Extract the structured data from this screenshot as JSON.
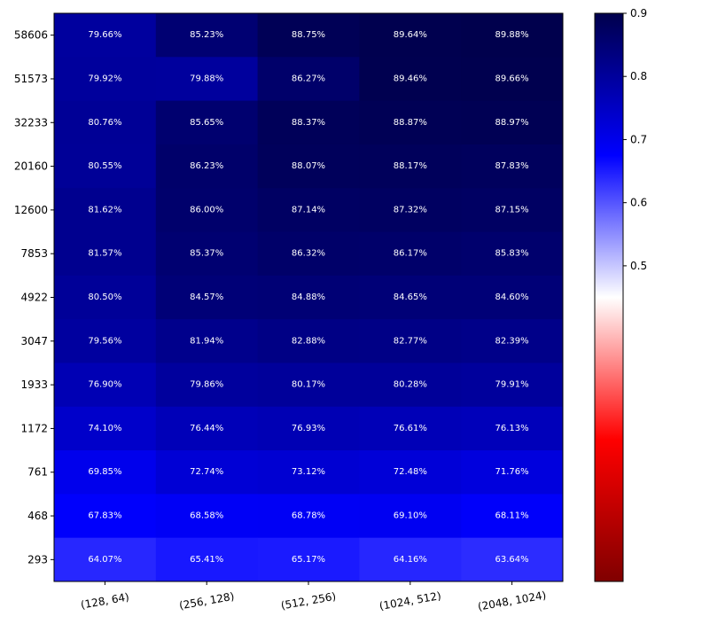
{
  "chart_data": {
    "type": "heatmap",
    "title": "",
    "xlabel": "",
    "ylabel": "",
    "x_categories": [
      "(128, 64)",
      "(256, 128)",
      "(512, 256)",
      "(1024, 512)",
      "(2048, 1024)"
    ],
    "y_categories": [
      "58606",
      "51573",
      "32233",
      "20160",
      "12600",
      "7853",
      "4922",
      "3047",
      "1933",
      "1172",
      "761",
      "468",
      "293"
    ],
    "values": [
      [
        0.7966,
        0.8523,
        0.8875,
        0.8964,
        0.8988
      ],
      [
        0.7992,
        0.7988,
        0.8627,
        0.8946,
        0.8966
      ],
      [
        0.8076,
        0.8565,
        0.8837,
        0.8887,
        0.8897
      ],
      [
        0.8055,
        0.8623,
        0.8807,
        0.8817,
        0.8783
      ],
      [
        0.8162,
        0.86,
        0.8714,
        0.8732,
        0.8715
      ],
      [
        0.8157,
        0.8537,
        0.8632,
        0.8617,
        0.8583
      ],
      [
        0.805,
        0.8457,
        0.8488,
        0.8465,
        0.846
      ],
      [
        0.7956,
        0.8194,
        0.8288,
        0.8277,
        0.8239
      ],
      [
        0.769,
        0.7986,
        0.8017,
        0.8028,
        0.7991
      ],
      [
        0.741,
        0.7644,
        0.7693,
        0.7661,
        0.7613
      ],
      [
        0.6985,
        0.7274,
        0.7312,
        0.7248,
        0.7176
      ],
      [
        0.6783,
        0.6858,
        0.6878,
        0.691,
        0.6811
      ],
      [
        0.6407,
        0.6541,
        0.6517,
        0.6416,
        0.6364
      ]
    ],
    "cell_labels": [
      [
        "79.66%",
        "85.23%",
        "88.75%",
        "89.64%",
        "89.88%"
      ],
      [
        "79.92%",
        "79.88%",
        "86.27%",
        "89.46%",
        "89.66%"
      ],
      [
        "80.76%",
        "85.65%",
        "88.37%",
        "88.87%",
        "88.97%"
      ],
      [
        "80.55%",
        "86.23%",
        "88.07%",
        "88.17%",
        "87.83%"
      ],
      [
        "81.62%",
        "86.00%",
        "87.14%",
        "87.32%",
        "87.15%"
      ],
      [
        "81.57%",
        "85.37%",
        "86.32%",
        "86.17%",
        "85.83%"
      ],
      [
        "80.50%",
        "84.57%",
        "84.88%",
        "84.65%",
        "84.60%"
      ],
      [
        "79.56%",
        "81.94%",
        "82.88%",
        "82.77%",
        "82.39%"
      ],
      [
        "76.90%",
        "79.86%",
        "80.17%",
        "80.28%",
        "79.91%"
      ],
      [
        "74.10%",
        "76.44%",
        "76.93%",
        "76.61%",
        "76.13%"
      ],
      [
        "69.85%",
        "72.74%",
        "73.12%",
        "72.48%",
        "71.76%"
      ],
      [
        "67.83%",
        "68.58%",
        "68.78%",
        "69.10%",
        "68.11%"
      ],
      [
        "64.07%",
        "65.41%",
        "65.17%",
        "64.16%",
        "63.64%"
      ]
    ],
    "colormap": "seismic_r",
    "colorbar": {
      "range": [
        0.0,
        0.9
      ],
      "ticks": [
        0.5,
        0.6,
        0.7,
        0.8,
        0.9
      ],
      "tick_labels": [
        "0.5",
        "0.6",
        "0.7",
        "0.8",
        "0.9"
      ],
      "stops": [
        "#800000",
        "#ff0000",
        "#ffffff",
        "#0000ff",
        "#00004c"
      ]
    },
    "grid": false,
    "cell_text_color": "#ffffff"
  }
}
